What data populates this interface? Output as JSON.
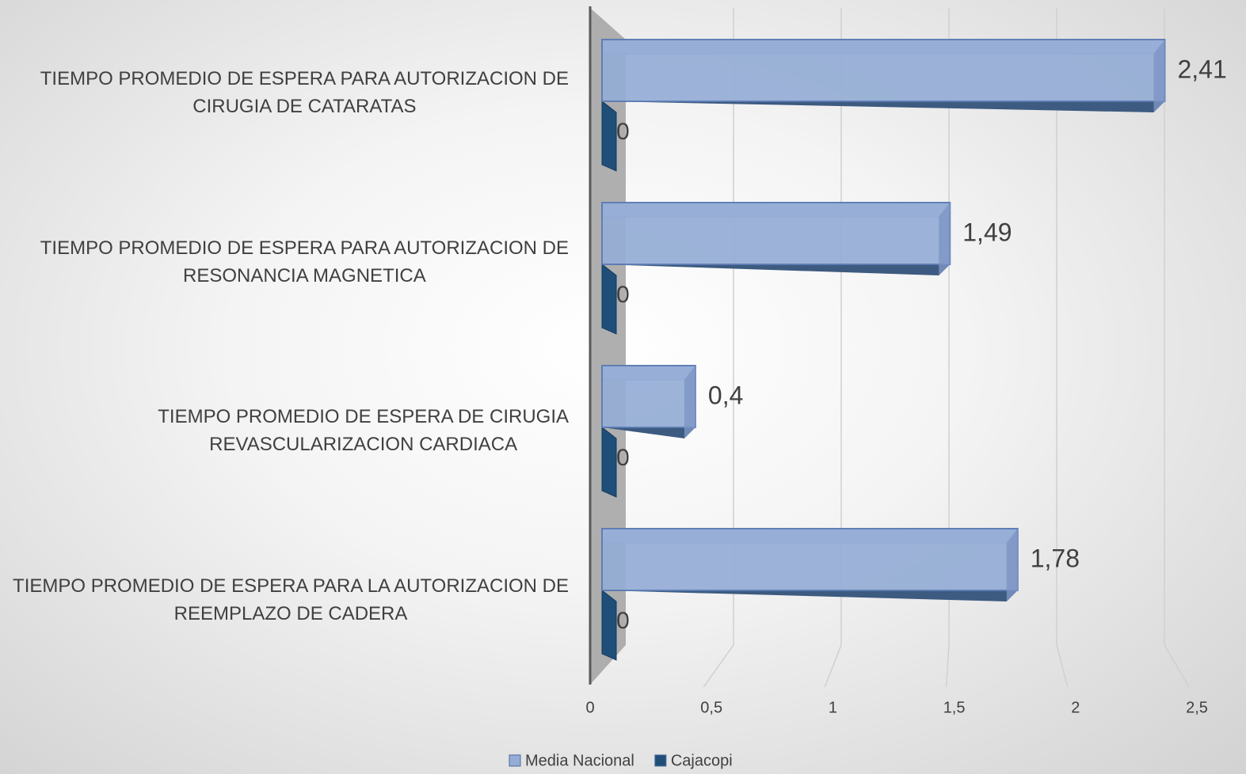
{
  "chart_data": {
    "type": "bar3d",
    "categories": [
      "TIEMPO PROMEDIO DE ESPERA PARA AUTORIZACION DE\nCIRUGIA DE CATARATAS",
      "TIEMPO PROMEDIO DE ESPERA PARA AUTORIZACION DE\nRESONANCIA MAGNETICA",
      "TIEMPO PROMEDIO DE ESPERA  DE CIRUGIA\nREVASCULARIZACION CARDIACA",
      "TIEMPO PROMEDIO DE ESPERA PARA LA AUTORIZACION DE\nREEMPLAZO DE CADERA"
    ],
    "series": [
      {
        "name": "Media Nacional",
        "color": "#95add6",
        "values": [
          2.41,
          1.49,
          0.4,
          1.78
        ],
        "value_labels": [
          "2,41",
          "1,49",
          "0,4",
          "1,78"
        ]
      },
      {
        "name": "Cajacopi",
        "color": "#1f4e79",
        "values": [
          0,
          0,
          0,
          0
        ]
      }
    ],
    "xlim": [
      0,
      2.5
    ],
    "xticks": [
      0,
      {
        "value": 0.5,
        "label": "0,5"
      },
      1,
      {
        "value": 1.5,
        "label": "1,5"
      },
      2,
      {
        "value": 2.5,
        "label": "2,5"
      }
    ],
    "grid": true,
    "legend": "bottom"
  }
}
